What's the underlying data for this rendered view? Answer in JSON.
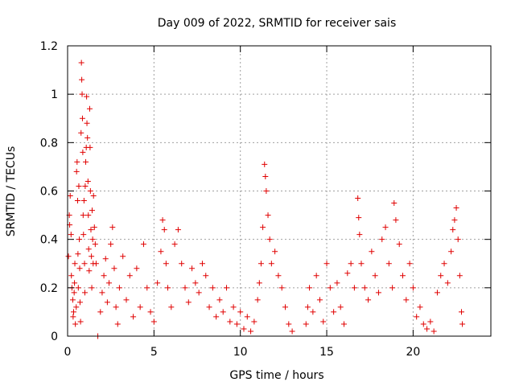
{
  "chart_data": {
    "type": "scatter",
    "title": "Day 009 of 2022, SRMTID for receiver sais",
    "xlabel": "GPS time / hours",
    "ylabel": "SRMTID / TECUs",
    "xlim": [
      0,
      24.5
    ],
    "ylim": [
      0,
      1.2
    ],
    "xticks": [
      0,
      5,
      10,
      15,
      20
    ],
    "xtick_labels": [
      "0",
      "5",
      "10",
      "15",
      "20"
    ],
    "yticks": [
      0,
      0.2,
      0.4,
      0.6,
      0.8,
      1,
      1.2
    ],
    "ytick_labels": [
      "0",
      "0.2",
      "0.4",
      "0.6",
      "0.8",
      "1",
      "1.2"
    ],
    "grid": true,
    "marker": "+",
    "color": "#e00000",
    "series": [
      {
        "name": "SRMTID",
        "points": [
          [
            0.05,
            0.33
          ],
          [
            0.1,
            0.5
          ],
          [
            0.12,
            0.46
          ],
          [
            0.15,
            0.58
          ],
          [
            0.2,
            0.42
          ],
          [
            0.22,
            0.25
          ],
          [
            0.25,
            0.2
          ],
          [
            0.3,
            0.15
          ],
          [
            0.32,
            0.08
          ],
          [
            0.35,
            0.1
          ],
          [
            0.38,
            0.18
          ],
          [
            0.4,
            0.22
          ],
          [
            0.42,
            0.3
          ],
          [
            0.45,
            0.05
          ],
          [
            0.5,
            0.12
          ],
          [
            0.52,
            0.68
          ],
          [
            0.55,
            0.72
          ],
          [
            0.58,
            0.56
          ],
          [
            0.6,
            0.34
          ],
          [
            0.62,
            0.2
          ],
          [
            0.65,
            0.62
          ],
          [
            0.68,
            0.4
          ],
          [
            0.7,
            0.28
          ],
          [
            0.72,
            0.14
          ],
          [
            0.75,
            0.06
          ],
          [
            0.78,
            0.84
          ],
          [
            0.8,
            1.13
          ],
          [
            0.82,
            1.06
          ],
          [
            0.84,
            1.0
          ],
          [
            0.86,
            0.9
          ],
          [
            0.88,
            0.76
          ],
          [
            0.9,
            0.5
          ],
          [
            0.92,
            0.42
          ],
          [
            0.95,
            0.56
          ],
          [
            0.98,
            0.3
          ],
          [
            1.0,
            0.18
          ],
          [
            1.02,
            0.62
          ],
          [
            1.05,
            0.72
          ],
          [
            1.08,
            0.78
          ],
          [
            1.1,
            0.99
          ],
          [
            1.12,
            0.88
          ],
          [
            1.15,
            0.82
          ],
          [
            1.18,
            0.64
          ],
          [
            1.2,
            0.5
          ],
          [
            1.22,
            0.36
          ],
          [
            1.25,
            0.27
          ],
          [
            1.28,
            0.94
          ],
          [
            1.3,
            0.78
          ],
          [
            1.32,
            0.6
          ],
          [
            1.35,
            0.44
          ],
          [
            1.38,
            0.33
          ],
          [
            1.4,
            0.2
          ],
          [
            1.42,
            0.52
          ],
          [
            1.45,
            0.4
          ],
          [
            1.48,
            0.3
          ],
          [
            1.5,
            0.58
          ],
          [
            1.55,
            0.45
          ],
          [
            1.6,
            0.38
          ],
          [
            1.65,
            0.3
          ],
          [
            1.75,
            0.0
          ],
          [
            1.9,
            0.1
          ],
          [
            2.0,
            0.18
          ],
          [
            2.1,
            0.25
          ],
          [
            2.2,
            0.32
          ],
          [
            2.3,
            0.14
          ],
          [
            2.4,
            0.22
          ],
          [
            2.5,
            0.38
          ],
          [
            2.6,
            0.45
          ],
          [
            2.7,
            0.28
          ],
          [
            2.8,
            0.12
          ],
          [
            2.9,
            0.05
          ],
          [
            3.0,
            0.2
          ],
          [
            3.2,
            0.33
          ],
          [
            3.4,
            0.15
          ],
          [
            3.6,
            0.25
          ],
          [
            3.8,
            0.08
          ],
          [
            4.0,
            0.28
          ],
          [
            4.2,
            0.12
          ],
          [
            4.4,
            0.38
          ],
          [
            4.6,
            0.2
          ],
          [
            4.8,
            0.1
          ],
          [
            5.0,
            0.06
          ],
          [
            5.2,
            0.22
          ],
          [
            5.4,
            0.35
          ],
          [
            5.5,
            0.48
          ],
          [
            5.6,
            0.44
          ],
          [
            5.7,
            0.3
          ],
          [
            5.8,
            0.2
          ],
          [
            6.0,
            0.12
          ],
          [
            6.2,
            0.38
          ],
          [
            6.4,
            0.44
          ],
          [
            6.6,
            0.3
          ],
          [
            6.8,
            0.2
          ],
          [
            7.0,
            0.14
          ],
          [
            7.2,
            0.28
          ],
          [
            7.4,
            0.22
          ],
          [
            7.6,
            0.18
          ],
          [
            7.8,
            0.3
          ],
          [
            8.0,
            0.25
          ],
          [
            8.2,
            0.12
          ],
          [
            8.4,
            0.2
          ],
          [
            8.6,
            0.08
          ],
          [
            8.8,
            0.15
          ],
          [
            9.0,
            0.1
          ],
          [
            9.2,
            0.2
          ],
          [
            9.4,
            0.06
          ],
          [
            9.6,
            0.12
          ],
          [
            9.8,
            0.05
          ],
          [
            10.0,
            0.1
          ],
          [
            10.2,
            0.03
          ],
          [
            10.4,
            0.08
          ],
          [
            10.6,
            0.02
          ],
          [
            10.8,
            0.06
          ],
          [
            11.0,
            0.15
          ],
          [
            11.1,
            0.22
          ],
          [
            11.2,
            0.3
          ],
          [
            11.3,
            0.45
          ],
          [
            11.4,
            0.71
          ],
          [
            11.45,
            0.66
          ],
          [
            11.5,
            0.6
          ],
          [
            11.6,
            0.5
          ],
          [
            11.7,
            0.4
          ],
          [
            11.8,
            0.3
          ],
          [
            12.0,
            0.35
          ],
          [
            12.2,
            0.25
          ],
          [
            12.4,
            0.2
          ],
          [
            12.6,
            0.12
          ],
          [
            12.8,
            0.05
          ],
          [
            13.0,
            0.02
          ],
          [
            13.8,
            0.05
          ],
          [
            13.9,
            0.12
          ],
          [
            14.0,
            0.2
          ],
          [
            14.2,
            0.1
          ],
          [
            14.4,
            0.25
          ],
          [
            14.6,
            0.15
          ],
          [
            14.8,
            0.06
          ],
          [
            15.0,
            0.3
          ],
          [
            15.2,
            0.2
          ],
          [
            15.4,
            0.1
          ],
          [
            15.6,
            0.22
          ],
          [
            15.8,
            0.12
          ],
          [
            16.0,
            0.05
          ],
          [
            16.2,
            0.26
          ],
          [
            16.4,
            0.3
          ],
          [
            16.6,
            0.2
          ],
          [
            16.8,
            0.57
          ],
          [
            16.85,
            0.49
          ],
          [
            16.9,
            0.42
          ],
          [
            17.0,
            0.3
          ],
          [
            17.2,
            0.2
          ],
          [
            17.4,
            0.15
          ],
          [
            17.6,
            0.35
          ],
          [
            17.8,
            0.25
          ],
          [
            18.0,
            0.18
          ],
          [
            18.2,
            0.4
          ],
          [
            18.4,
            0.45
          ],
          [
            18.6,
            0.3
          ],
          [
            18.8,
            0.2
          ],
          [
            18.9,
            0.55
          ],
          [
            19.0,
            0.48
          ],
          [
            19.2,
            0.38
          ],
          [
            19.4,
            0.25
          ],
          [
            19.6,
            0.15
          ],
          [
            19.8,
            0.3
          ],
          [
            20.0,
            0.2
          ],
          [
            20.2,
            0.08
          ],
          [
            20.4,
            0.12
          ],
          [
            20.6,
            0.05
          ],
          [
            20.8,
            0.03
          ],
          [
            21.0,
            0.06
          ],
          [
            21.2,
            0.02
          ],
          [
            21.4,
            0.18
          ],
          [
            21.6,
            0.25
          ],
          [
            21.8,
            0.3
          ],
          [
            22.0,
            0.22
          ],
          [
            22.2,
            0.35
          ],
          [
            22.3,
            0.44
          ],
          [
            22.4,
            0.48
          ],
          [
            22.5,
            0.53
          ],
          [
            22.6,
            0.4
          ],
          [
            22.7,
            0.25
          ],
          [
            22.8,
            0.1
          ],
          [
            22.85,
            0.05
          ]
        ]
      }
    ]
  }
}
